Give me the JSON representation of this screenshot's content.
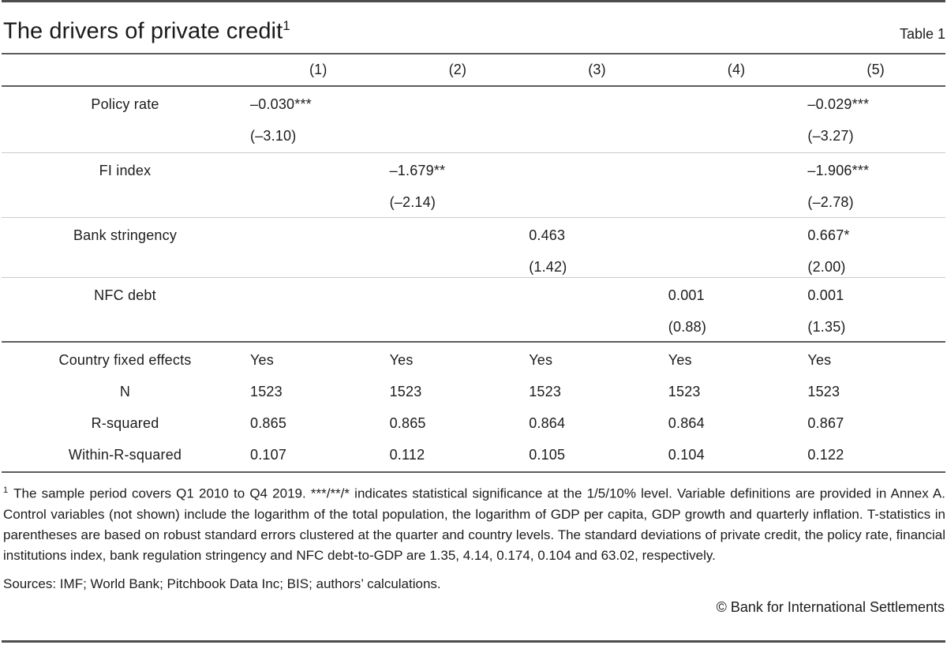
{
  "header": {
    "title": "The drivers of private credit",
    "title_superscript": "1",
    "table_label": "Table 1"
  },
  "table": {
    "columns": [
      "(1)",
      "(2)",
      "(3)",
      "(4)",
      "(5)"
    ],
    "variable_rows": [
      {
        "label": "Policy rate",
        "coef": [
          "–0.030***",
          "",
          "",
          "",
          "–0.029***"
        ],
        "tstat": [
          "(–3.10)",
          "",
          "",
          "",
          "(–3.27)"
        ]
      },
      {
        "label": "FI index",
        "coef": [
          "",
          "–1.679**",
          "",
          "",
          "–1.906***"
        ],
        "tstat": [
          "",
          "(–2.14)",
          "",
          "",
          "(–2.78)"
        ]
      },
      {
        "label": "Bank stringency",
        "coef": [
          "",
          "",
          "0.463",
          "",
          "0.667*"
        ],
        "tstat": [
          "",
          "",
          "(1.42)",
          "",
          "(2.00)"
        ]
      },
      {
        "label": "NFC debt",
        "coef": [
          "",
          "",
          "",
          "0.001",
          "0.001"
        ],
        "tstat": [
          "",
          "",
          "",
          "(0.88)",
          "(1.35)"
        ]
      }
    ],
    "summary_rows": [
      {
        "label": "Country fixed effects",
        "values": [
          "Yes",
          "Yes",
          "Yes",
          "Yes",
          "Yes"
        ]
      },
      {
        "label": "N",
        "values": [
          "1523",
          "1523",
          "1523",
          "1523",
          "1523"
        ]
      },
      {
        "label": "R-squared",
        "values": [
          "0.865",
          "0.865",
          "0.864",
          "0.864",
          "0.867"
        ]
      },
      {
        "label": "Within-R-squared",
        "values": [
          "0.107",
          "0.112",
          "0.105",
          "0.104",
          "0.122"
        ]
      }
    ]
  },
  "footnote": {
    "marker": "1",
    "text": "The sample period covers Q1 2010 to Q4 2019. ***/**/* indicates statistical significance at the 1/5/10% level. Variable definitions are provided in Annex A. Control variables (not shown) include the logarithm of the total population, the logarithm of GDP per capita, GDP growth and quarterly inflation. T-statistics in parentheses are based on robust standard errors clustered at the quarter and country levels. The standard deviations of private credit, the policy rate, financial institutions index, bank regulation stringency and NFC debt-to-GDP are 1.35, 4.14, 0.174, 0.104 and 63.02, respectively."
  },
  "sources": "Sources: IMF; World Bank; Pitchbook Data Inc; BIS; authors’ calculations.",
  "copyright": "© Bank for International Settlements"
}
